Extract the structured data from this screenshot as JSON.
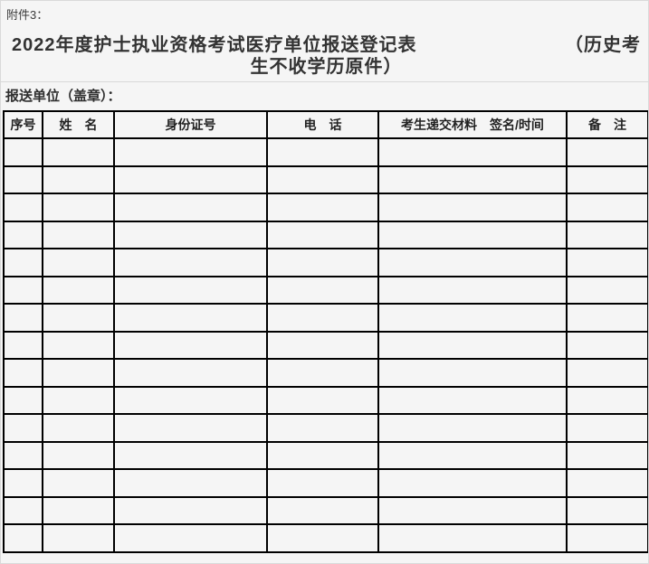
{
  "attachment_label": "附件3：",
  "title": {
    "line1_left": "2022年度护士执业资格考试医疗单位报送登记表",
    "line1_right": "（历史考",
    "line2": "生不收学历原件）"
  },
  "unit_label": "报送单位（盖章）：",
  "table": {
    "columns": [
      {
        "label": "序号"
      },
      {
        "label": "姓　名"
      },
      {
        "label": "身份证号"
      },
      {
        "label": "电　话"
      },
      {
        "label": "考生递交材料　签名/时间"
      },
      {
        "label": "备　注"
      }
    ],
    "row_count": 15
  },
  "colors": {
    "page_background": "#f5f5f5",
    "page_border": "#d9d9d9",
    "table_border": "#000000",
    "text": "#333333"
  }
}
